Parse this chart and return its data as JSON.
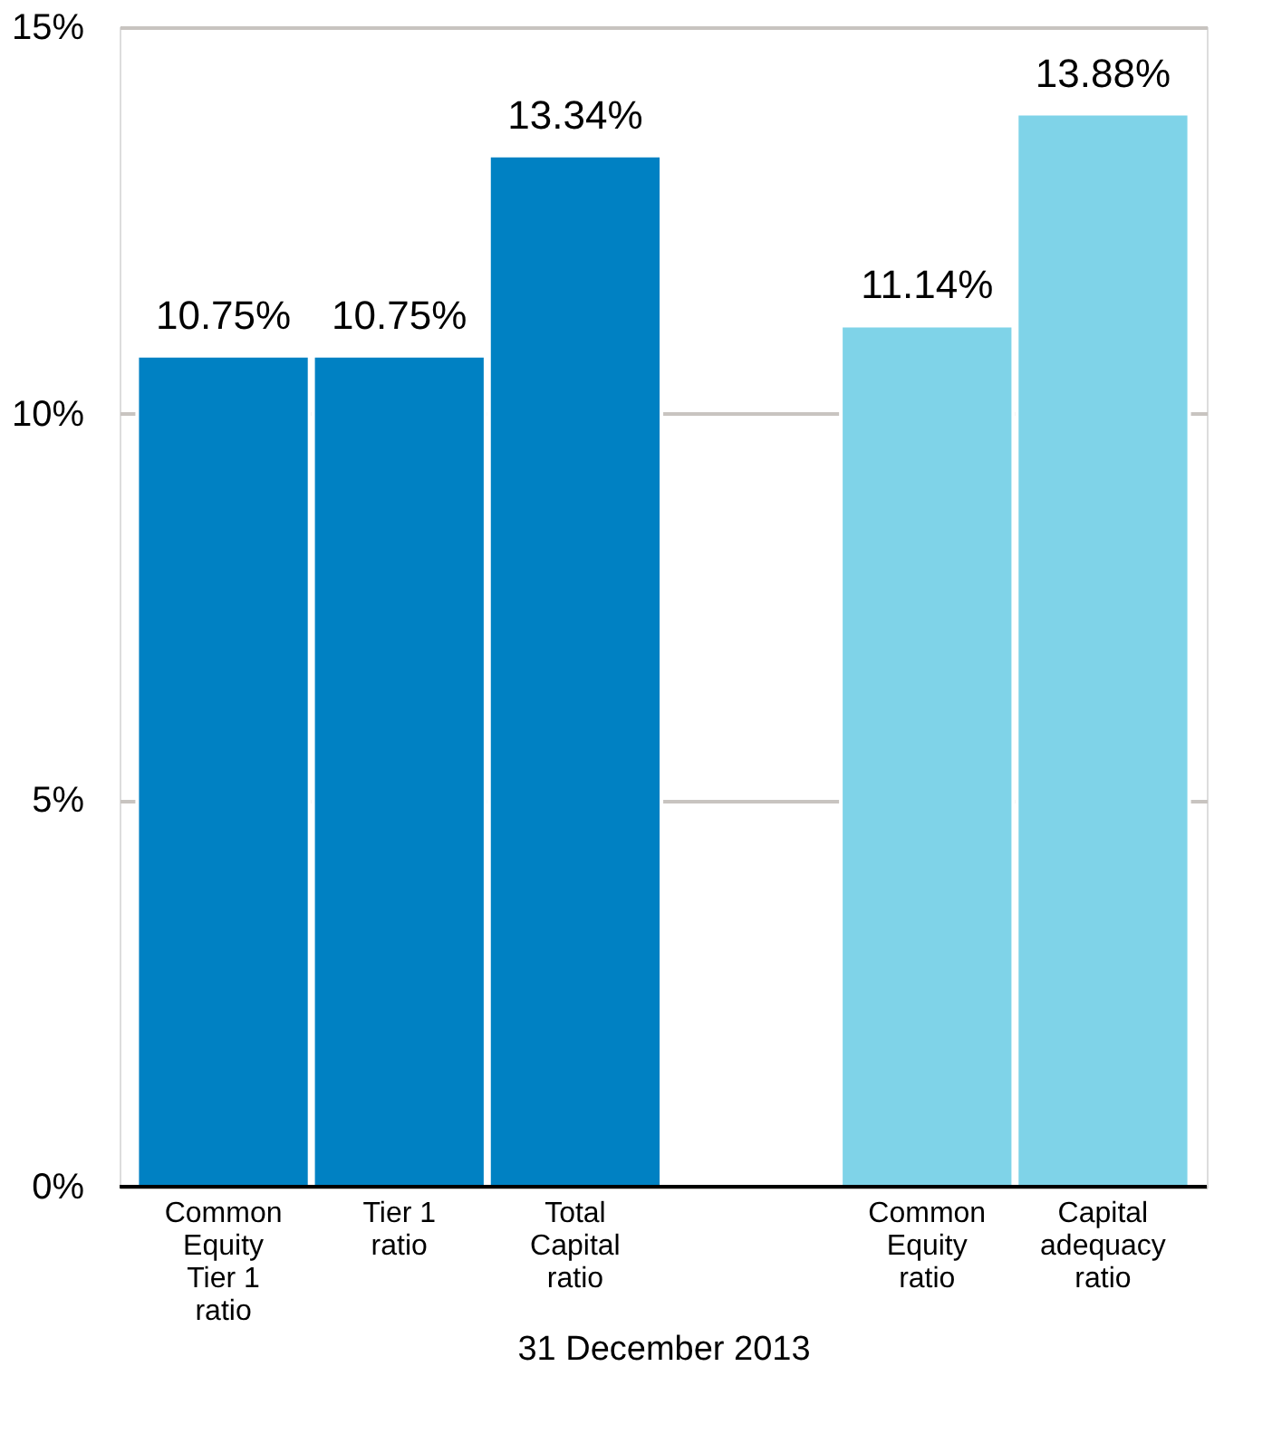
{
  "chart_data": {
    "type": "bar",
    "xlabel": "31 December 2013",
    "categories": [
      "Common Equity Tier 1 ratio",
      "Tier 1 ratio",
      "Total Capital ratio",
      null,
      "Common Equity ratio",
      "Capital adequacy ratio"
    ],
    "values": [
      10.75,
      10.75,
      13.34,
      null,
      11.14,
      13.88
    ],
    "colors": [
      "#0081c3",
      "#0081c3",
      "#0081c3",
      null,
      "#7fd3e8",
      "#7fd3e8"
    ],
    "value_labels": [
      "10.75%",
      "10.75%",
      "13.34%",
      null,
      "11.14%",
      "13.88%"
    ],
    "ylim": [
      0,
      15
    ],
    "yticks": [
      {
        "value": 0,
        "label": "0%"
      },
      {
        "value": 5,
        "label": "5%"
      },
      {
        "value": 10,
        "label": "10%"
      },
      {
        "value": 15,
        "label": "15%"
      }
    ],
    "grid": "y"
  }
}
